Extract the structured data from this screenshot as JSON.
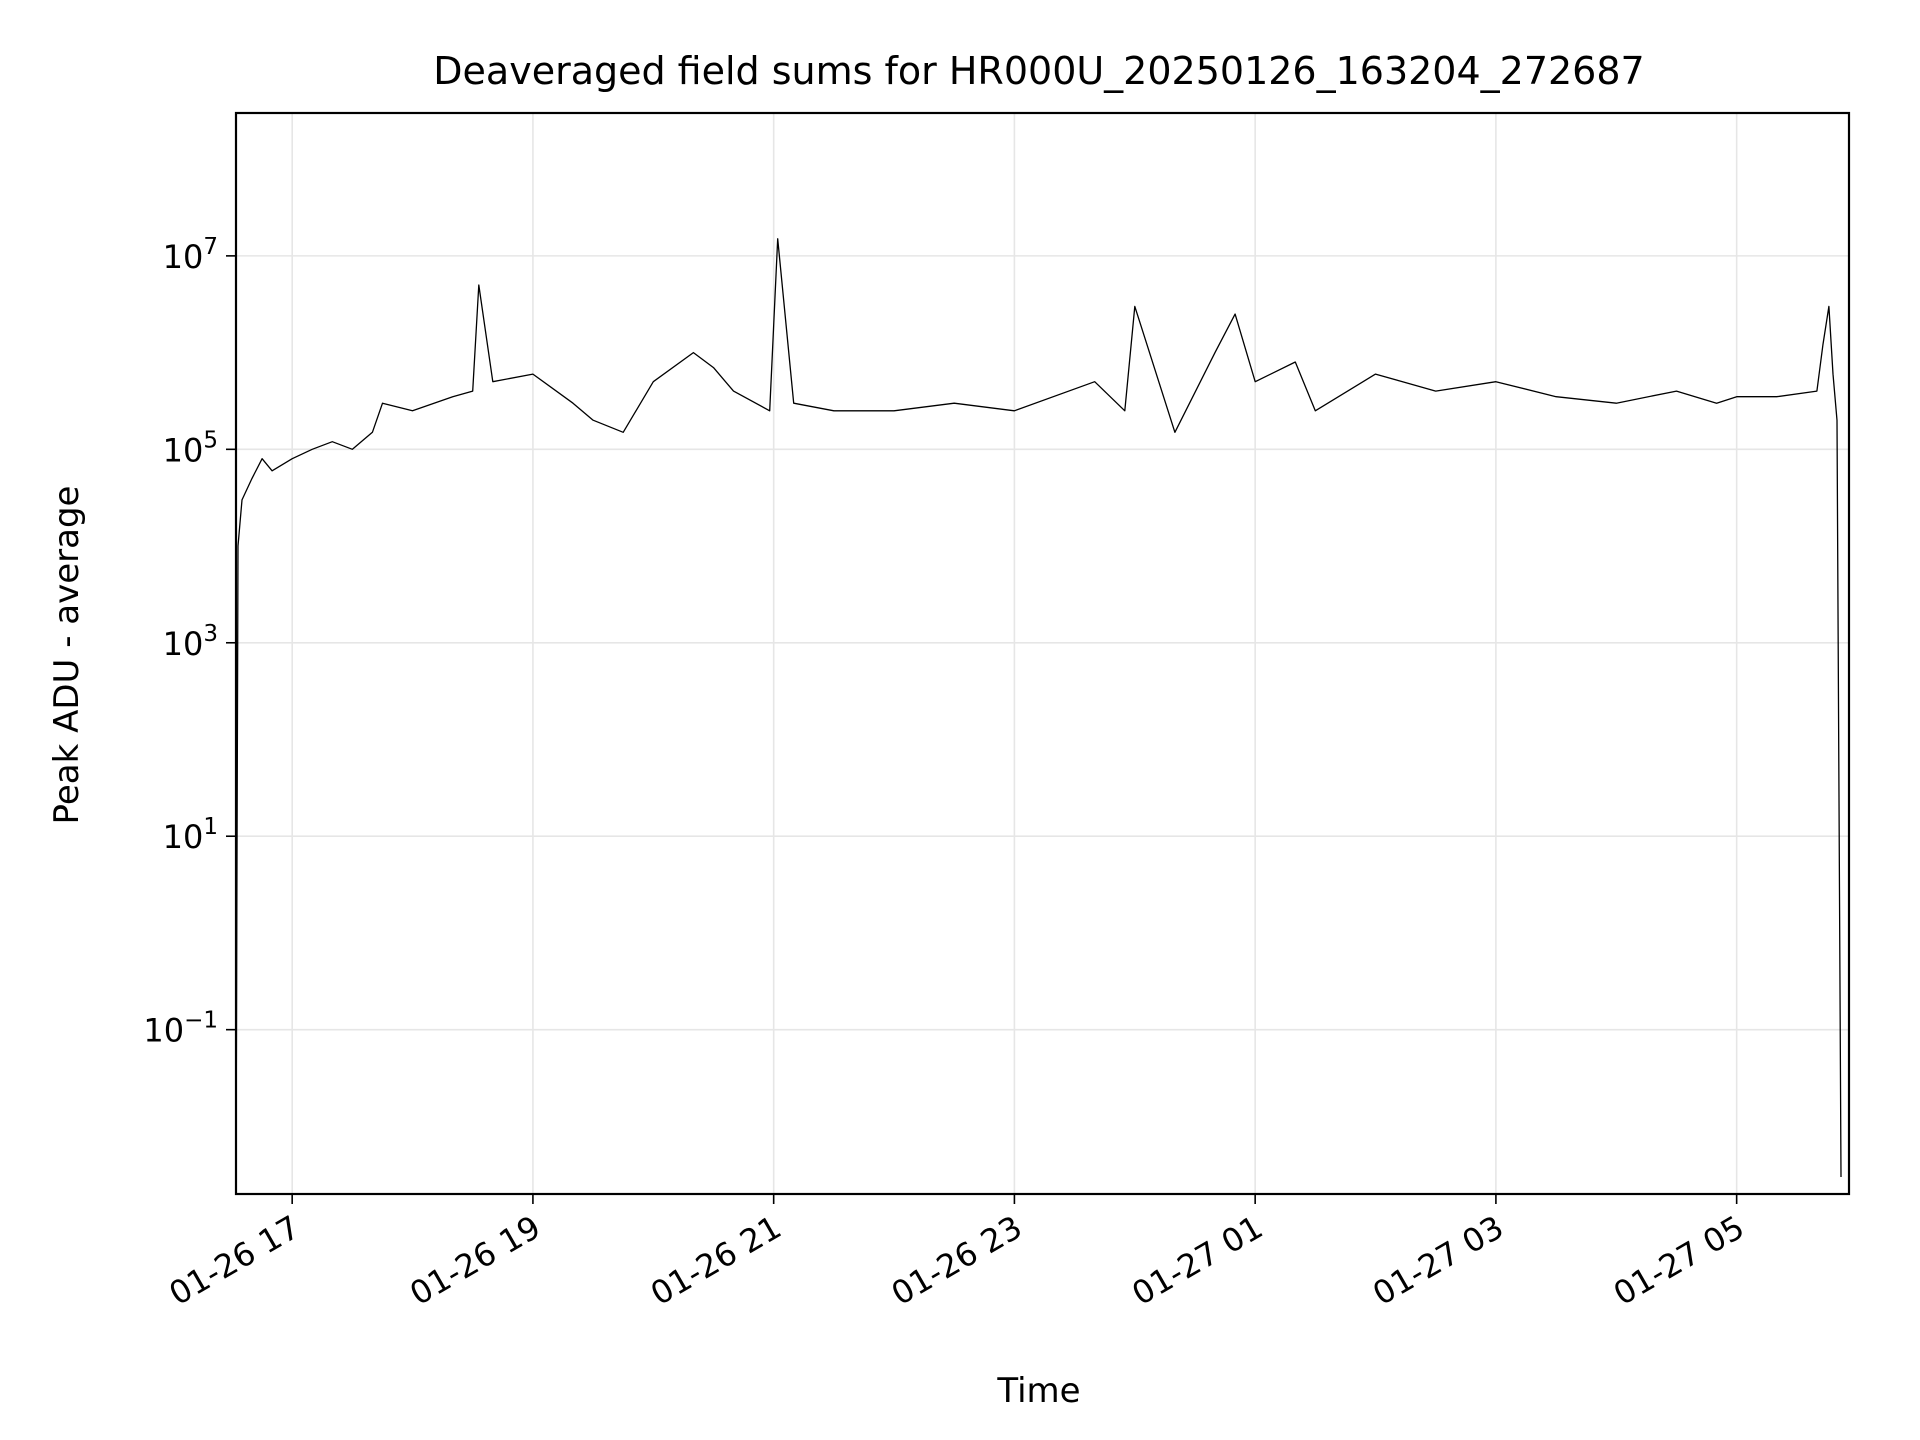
{
  "chart_data": {
    "type": "line",
    "title": "Deaveraged field sums for HR000U_20250126_163204_272687",
    "xlabel": "Time",
    "ylabel": "Peak ADU - average",
    "y_scale": "log",
    "ylim": [
      0.002,
      300000000
    ],
    "xlim": [
      "2025-01-26 16:32",
      "2025-01-27 05:56"
    ],
    "x_tick_labels": [
      "01-26 17",
      "01-26 19",
      "01-26 21",
      "01-26 23",
      "01-27 01",
      "01-27 03",
      "01-27 05"
    ],
    "x_ticks": [
      "2025-01-26 17:00",
      "2025-01-26 19:00",
      "2025-01-26 21:00",
      "2025-01-26 23:00",
      "2025-01-27 01:00",
      "2025-01-27 03:00",
      "2025-01-27 05:00"
    ],
    "y_ticks": [
      {
        "value": 0.1,
        "base": "10",
        "exp": "−1"
      },
      {
        "value": 10,
        "base": "10",
        "exp": "1"
      },
      {
        "value": 1000,
        "base": "10",
        "exp": "3"
      },
      {
        "value": 100000,
        "base": "10",
        "exp": "5"
      },
      {
        "value": 10000000,
        "base": "10",
        "exp": "7"
      }
    ],
    "grid": true,
    "line_color": "#000000",
    "grid_color": "#e6e6e6",
    "series": [
      {
        "x": [
          "2025-01-26 16:32",
          "2025-01-26 16:33",
          "2025-01-26 16:35",
          "2025-01-26 16:40",
          "2025-01-26 16:45",
          "2025-01-26 16:50",
          "2025-01-26 17:00",
          "2025-01-26 17:10",
          "2025-01-26 17:20",
          "2025-01-26 17:30",
          "2025-01-26 17:40",
          "2025-01-26 17:45",
          "2025-01-26 18:00",
          "2025-01-26 18:20",
          "2025-01-26 18:30",
          "2025-01-26 18:33",
          "2025-01-26 18:40",
          "2025-01-26 19:00",
          "2025-01-26 19:20",
          "2025-01-26 19:30",
          "2025-01-26 19:45",
          "2025-01-26 20:00",
          "2025-01-26 20:20",
          "2025-01-26 20:30",
          "2025-01-26 20:40",
          "2025-01-26 20:58",
          "2025-01-26 21:02",
          "2025-01-26 21:10",
          "2025-01-26 21:30",
          "2025-01-26 22:00",
          "2025-01-26 22:30",
          "2025-01-26 23:00",
          "2025-01-26 23:40",
          "2025-01-26 23:55",
          "2025-01-27 00:00",
          "2025-01-27 00:20",
          "2025-01-27 00:40",
          "2025-01-27 00:50",
          "2025-01-27 01:00",
          "2025-01-27 01:20",
          "2025-01-27 01:30",
          "2025-01-27 02:00",
          "2025-01-27 02:30",
          "2025-01-27 03:00",
          "2025-01-27 03:30",
          "2025-01-27 04:00",
          "2025-01-27 04:30",
          "2025-01-27 04:50",
          "2025-01-27 05:00",
          "2025-01-27 05:20",
          "2025-01-27 05:40",
          "2025-01-27 05:43",
          "2025-01-27 05:46",
          "2025-01-27 05:48",
          "2025-01-27 05:50",
          "2025-01-27 05:52"
        ],
        "y": [
          0.003,
          10000,
          30000,
          50000,
          80000,
          60000,
          80000,
          100000,
          120000,
          100000,
          150000,
          300000,
          250000,
          350000,
          400000,
          5000000,
          500000,
          600000,
          300000,
          200000,
          150000,
          500000,
          1000000,
          700000,
          400000,
          250000,
          15000000,
          300000,
          250000,
          250000,
          300000,
          250000,
          500000,
          250000,
          3000000,
          150000,
          1000000,
          2500000,
          500000,
          800000,
          250000,
          600000,
          400000,
          500000,
          350000,
          300000,
          400000,
          300000,
          350000,
          350000,
          400000,
          1200000,
          3000000,
          600000,
          200000,
          0.003
        ]
      }
    ]
  }
}
